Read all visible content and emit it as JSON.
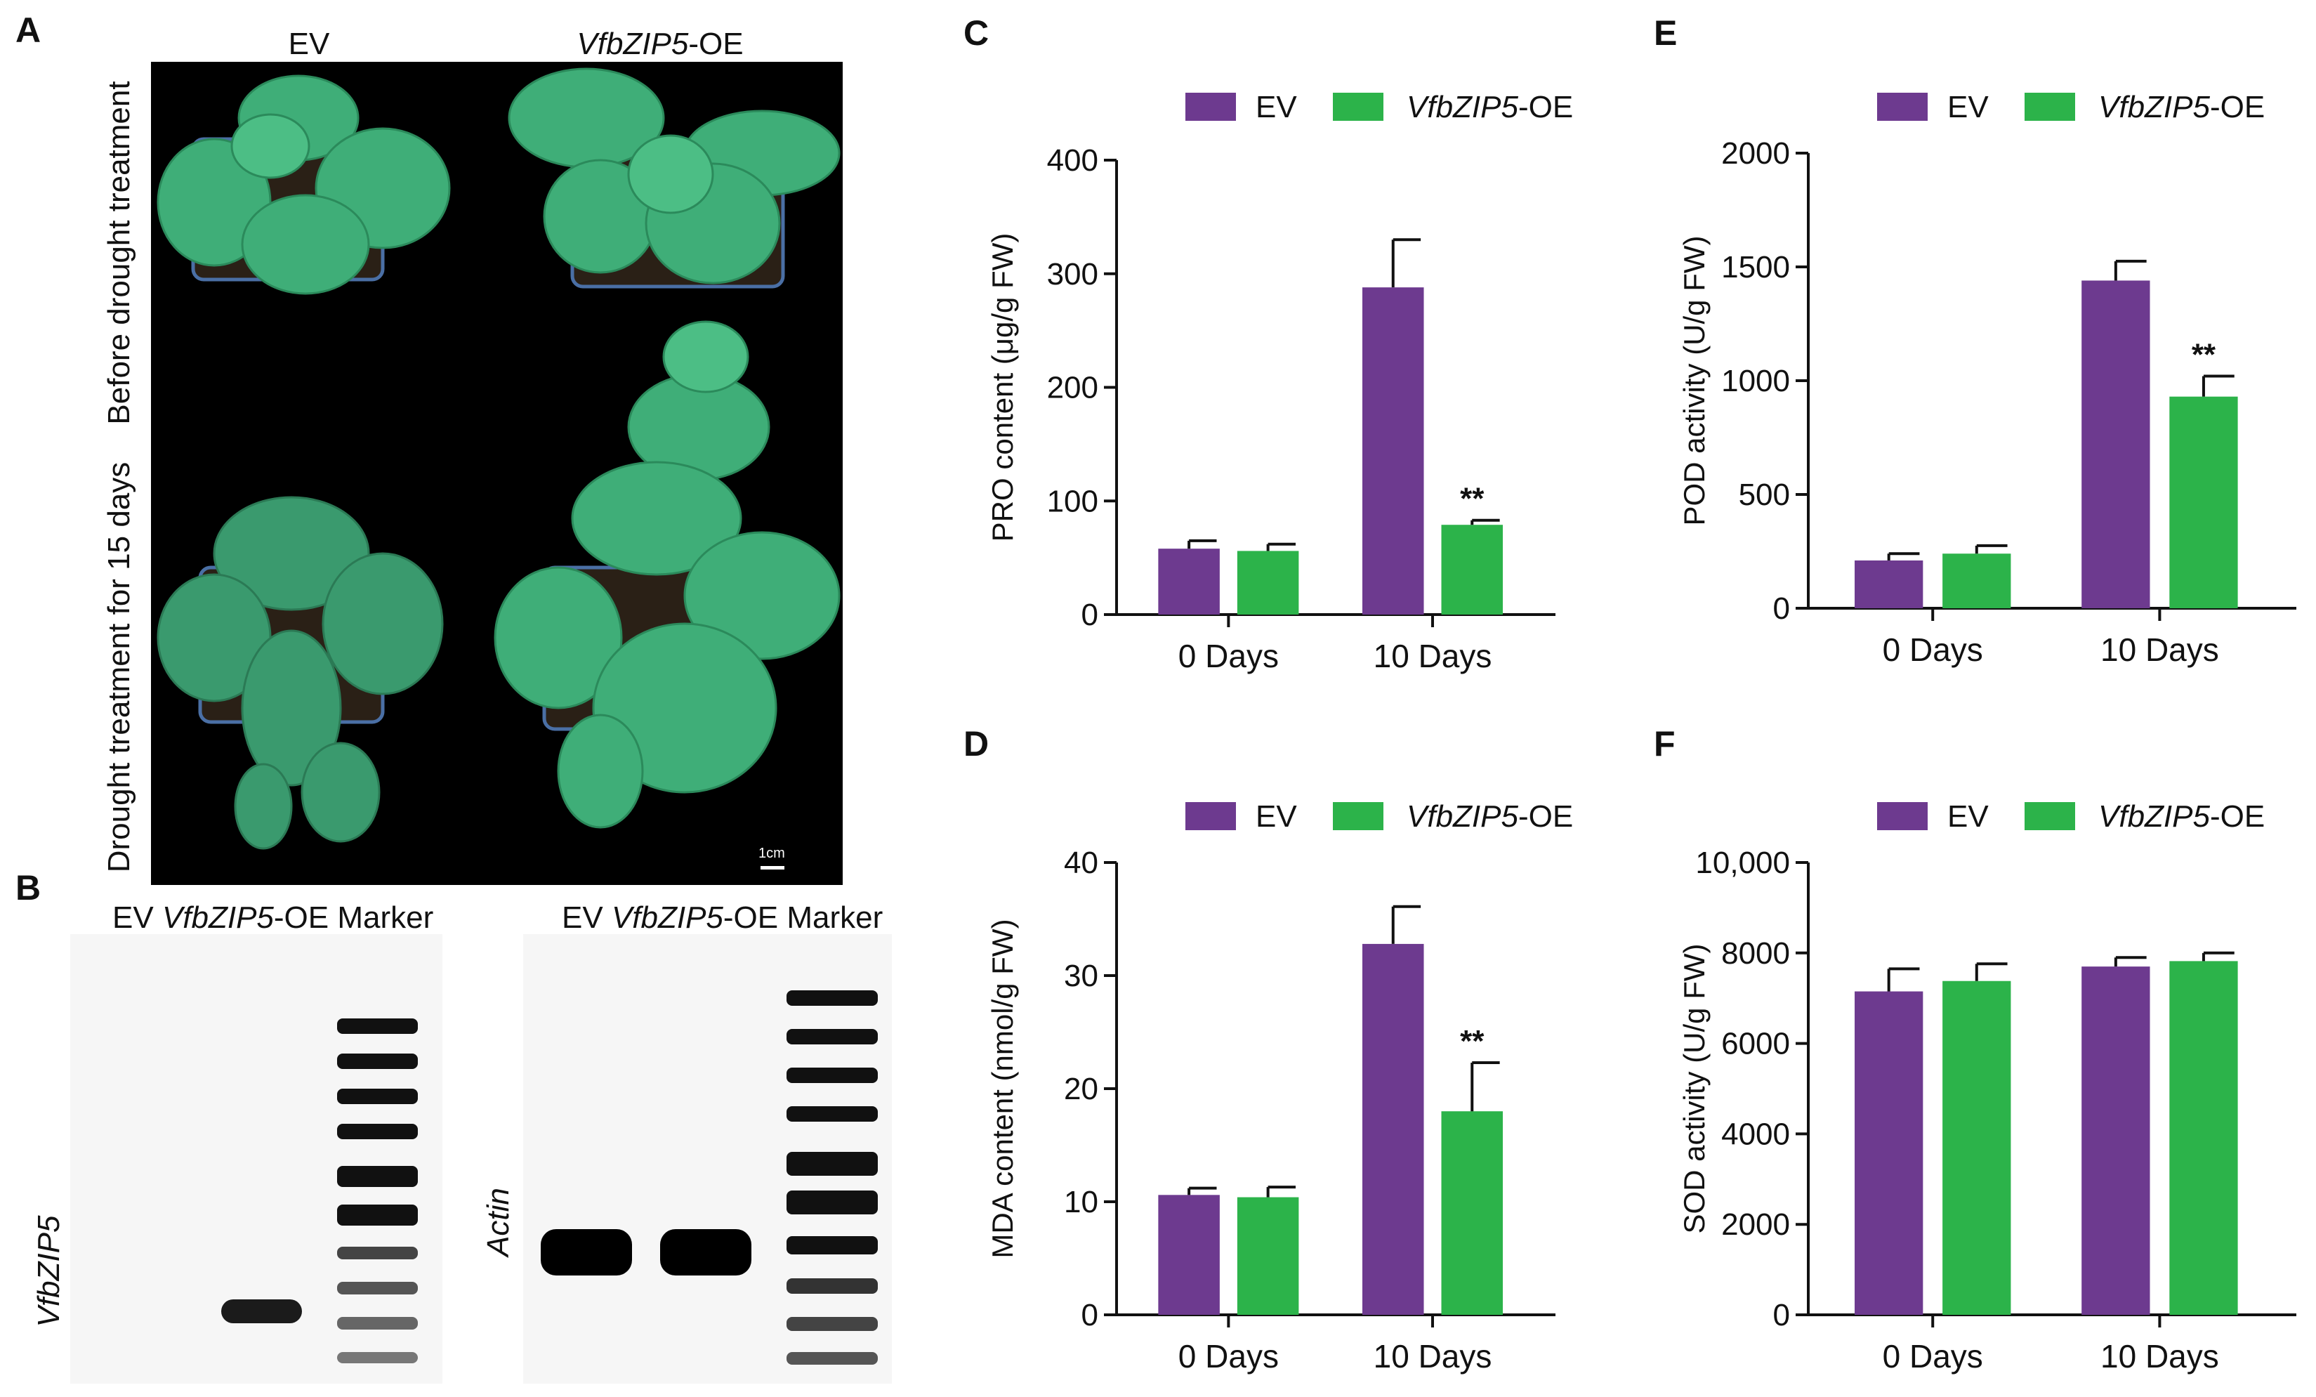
{
  "panels": {
    "A": "A",
    "B": "B",
    "C": "C",
    "D": "D",
    "E": "E",
    "F": "F"
  },
  "photo": {
    "col_ev": "EV",
    "col_oe_italic": "VfbZIP5",
    "col_oe_suffix": "-OE",
    "row_before": "Before drought treatment",
    "row_after": "Drought treatment for 15 days",
    "scale_bar": "1cm"
  },
  "gel_left": {
    "lane_ev": "EV",
    "lane_oe_italic": "VfbZIP5",
    "lane_oe_suffix": "-OE",
    "lane_marker": "Marker",
    "gene": "VfbZIP5"
  },
  "gel_right": {
    "lane_ev": "EV",
    "lane_oe_italic": "VfbZIP5",
    "lane_oe_suffix": "-OE",
    "lane_marker": "Marker",
    "gene": "Actin"
  },
  "colors": {
    "ev": "#6d3a8f",
    "oe": "#2cb34a"
  },
  "legend": {
    "ev": "EV",
    "oe_italic": "VfbZIP5",
    "oe_suffix": "-OE"
  },
  "chart_data": [
    {
      "panel": "C",
      "type": "bar",
      "categories": [
        "0 Days",
        "10 Days"
      ],
      "series": [
        {
          "name": "EV",
          "values": [
            58,
            288
          ],
          "errors": [
            7,
            42
          ],
          "sig": [
            "",
            ""
          ]
        },
        {
          "name": "VfbZIP5-OE",
          "values": [
            56,
            79
          ],
          "errors": [
            6,
            4
          ],
          "sig": [
            "",
            "**"
          ]
        }
      ],
      "ylabel": "PRO content (μg/g FW)",
      "ylim": [
        0,
        400
      ],
      "yticks": [
        0,
        100,
        200,
        300,
        400
      ],
      "ytick_labels": [
        "0",
        "100",
        "200",
        "300",
        "400"
      ]
    },
    {
      "panel": "E",
      "type": "bar",
      "categories": [
        "0 Days",
        "10 Days"
      ],
      "series": [
        {
          "name": "EV",
          "values": [
            210,
            1440
          ],
          "errors": [
            30,
            85
          ],
          "sig": [
            "",
            ""
          ]
        },
        {
          "name": "VfbZIP5-OE",
          "values": [
            240,
            930
          ],
          "errors": [
            35,
            90
          ],
          "sig": [
            "",
            "**"
          ]
        }
      ],
      "ylabel": "POD activity (U/g FW)",
      "ylim": [
        0,
        2000
      ],
      "yticks": [
        0,
        500,
        1000,
        1500,
        2000
      ],
      "ytick_labels": [
        "0",
        "500",
        "1000",
        "1500",
        "2000"
      ]
    },
    {
      "panel": "D",
      "type": "bar",
      "categories": [
        "0 Days",
        "10 Days"
      ],
      "series": [
        {
          "name": "EV",
          "values": [
            10.6,
            32.8
          ],
          "errors": [
            0.6,
            3.3
          ],
          "sig": [
            "",
            ""
          ]
        },
        {
          "name": "VfbZIP5-OE",
          "values": [
            10.4,
            18.0
          ],
          "errors": [
            0.9,
            4.3
          ],
          "sig": [
            "",
            "**"
          ]
        }
      ],
      "ylabel": "MDA content (nmol/g FW)",
      "ylim": [
        0,
        40
      ],
      "yticks": [
        0,
        10,
        20,
        30,
        40
      ],
      "ytick_labels": [
        "0",
        "10",
        "20",
        "30",
        "40"
      ]
    },
    {
      "panel": "F",
      "type": "bar",
      "categories": [
        "0 Days",
        "10 Days"
      ],
      "series": [
        {
          "name": "EV",
          "values": [
            7150,
            7700
          ],
          "errors": [
            500,
            200
          ],
          "sig": [
            "",
            ""
          ]
        },
        {
          "name": "VfbZIP5-OE",
          "values": [
            7380,
            7820
          ],
          "errors": [
            380,
            180
          ],
          "sig": [
            "",
            ""
          ]
        }
      ],
      "ylabel": "SOD activity (U/g FW)",
      "ylim": [
        0,
        10000
      ],
      "yticks": [
        0,
        2000,
        4000,
        6000,
        8000,
        10000
      ],
      "ytick_labels": [
        "0",
        "2000",
        "4000",
        "6000",
        "8000",
        "10,000"
      ]
    }
  ]
}
